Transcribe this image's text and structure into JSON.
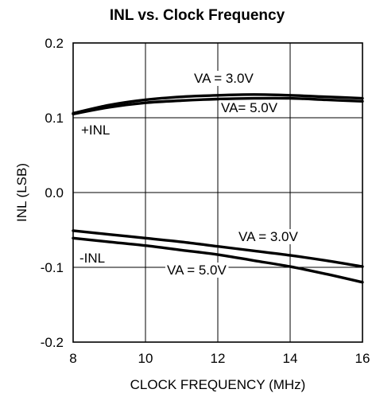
{
  "chart_data": {
    "type": "line",
    "title": "INL vs. Clock Frequency",
    "xlabel": "CLOCK FREQUENCY (MHz)",
    "ylabel": "INL (LSB)",
    "xlim": [
      8,
      16
    ],
    "ylim": [
      -0.2,
      0.2
    ],
    "xticks": [
      8,
      10,
      12,
      14,
      16
    ],
    "yticks": [
      -0.2,
      -0.1,
      0.0,
      0.1,
      0.2
    ],
    "xtick_labels": [
      "8",
      "10",
      "12",
      "14",
      "16"
    ],
    "ytick_labels": [
      "-0.2",
      "-0.1",
      "0.0",
      "0.1",
      "0.2"
    ],
    "grid": true,
    "series": [
      {
        "group": "+INL",
        "label": "VA = 3.0V",
        "x": [
          8,
          9,
          10,
          11,
          12,
          13,
          14,
          15,
          16
        ],
        "y": [
          0.106,
          0.117,
          0.124,
          0.128,
          0.13,
          0.131,
          0.13,
          0.128,
          0.126
        ]
      },
      {
        "group": "+INL",
        "label": "VA= 5.0V",
        "x": [
          8,
          9,
          10,
          11,
          12,
          13,
          14,
          15,
          16
        ],
        "y": [
          0.105,
          0.114,
          0.12,
          0.123,
          0.125,
          0.126,
          0.126,
          0.124,
          0.122
        ]
      },
      {
        "group": "-INL",
        "label": "VA = 3.0V",
        "x": [
          8,
          9,
          10,
          11,
          12,
          13,
          14,
          15,
          16
        ],
        "y": [
          -0.051,
          -0.056,
          -0.061,
          -0.066,
          -0.072,
          -0.078,
          -0.084,
          -0.091,
          -0.099
        ]
      },
      {
        "group": "-INL",
        "label": "VA = 5.0V",
        "x": [
          8,
          9,
          10,
          11,
          12,
          13,
          14,
          15,
          16
        ],
        "y": [
          -0.061,
          -0.066,
          -0.071,
          -0.077,
          -0.083,
          -0.091,
          -0.099,
          -0.109,
          -0.12
        ]
      }
    ],
    "annotations": {
      "pos_inl": "+INL",
      "neg_inl": "-INL",
      "pos_va3": "VA = 3.0V",
      "pos_va5": "VA= 5.0V",
      "neg_va3": "VA = 3.0V",
      "neg_va5": "VA = 5.0V"
    }
  }
}
